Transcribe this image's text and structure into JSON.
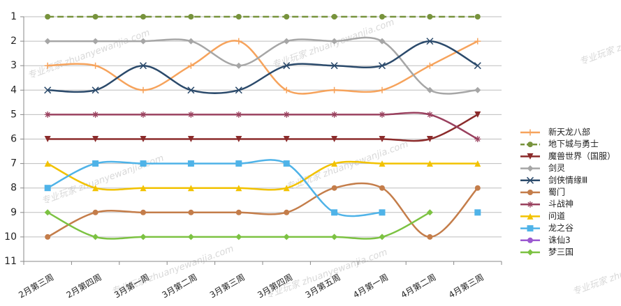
{
  "chart_data": {
    "type": "line",
    "categories": [
      "2月第三周",
      "2月第四周",
      "3月第一周",
      "3月第二周",
      "3月第三周",
      "3月第四周",
      "3月第五周",
      "4月第一周",
      "4月第二周",
      "4月第三周"
    ],
    "ylim": [
      11,
      1
    ],
    "yticks": [
      1,
      2,
      3,
      4,
      5,
      6,
      7,
      8,
      9,
      10,
      11
    ],
    "grid": true,
    "smooth": true,
    "legend": "right",
    "watermark": "专业玩家 zhuanyewanjia.com",
    "series": [
      {
        "name": "新天龙八部",
        "color": "#f6a35c",
        "marker": "plus",
        "values": [
          3,
          3,
          4,
          3,
          2,
          4,
          4,
          4,
          3,
          2
        ]
      },
      {
        "name": "地下城与勇士",
        "color": "#77933c",
        "marker": "circle",
        "dashed": true,
        "values": [
          1,
          1,
          1,
          1,
          1,
          1,
          1,
          1,
          1,
          1
        ]
      },
      {
        "name": "魔兽世界（国服）",
        "color": "#8b2b2b",
        "marker": "triangle-down",
        "values": [
          6,
          6,
          6,
          6,
          6,
          6,
          6,
          6,
          6,
          5
        ]
      },
      {
        "name": "剑灵",
        "color": "#a6a6a6",
        "marker": "diamond",
        "values": [
          2,
          2,
          2,
          2,
          3,
          2,
          2,
          2,
          4,
          4
        ]
      },
      {
        "name": "剑侠情缘Ⅲ",
        "color": "#2b4a6b",
        "marker": "x",
        "values": [
          4,
          4,
          3,
          4,
          4,
          3,
          3,
          3,
          2,
          3
        ]
      },
      {
        "name": "蜀门",
        "color": "#c47d4a",
        "marker": "circle",
        "values": [
          10,
          9,
          9,
          9,
          9,
          9,
          8,
          8,
          10,
          8
        ]
      },
      {
        "name": "斗战神",
        "color": "#99405e",
        "marker": "star",
        "values": [
          5,
          5,
          5,
          5,
          5,
          5,
          5,
          5,
          5,
          6
        ]
      },
      {
        "name": "问道",
        "color": "#f2c200",
        "marker": "triangle",
        "values": [
          7,
          8,
          8,
          8,
          8,
          8,
          7,
          7,
          7,
          7
        ]
      },
      {
        "name": "龙之谷",
        "color": "#4fb3e8",
        "marker": "square",
        "values": [
          8,
          7,
          7,
          7,
          7,
          7,
          9,
          9,
          null,
          9
        ]
      },
      {
        "name": "诛仙3",
        "color": "#9b59d0",
        "marker": "circle",
        "values": [
          null,
          null,
          null,
          null,
          null,
          null,
          null,
          null,
          null,
          null
        ]
      },
      {
        "name": "梦三国",
        "color": "#7cc242",
        "marker": "diamond",
        "values": [
          9,
          10,
          10,
          10,
          10,
          10,
          10,
          10,
          9,
          null
        ]
      }
    ]
  }
}
